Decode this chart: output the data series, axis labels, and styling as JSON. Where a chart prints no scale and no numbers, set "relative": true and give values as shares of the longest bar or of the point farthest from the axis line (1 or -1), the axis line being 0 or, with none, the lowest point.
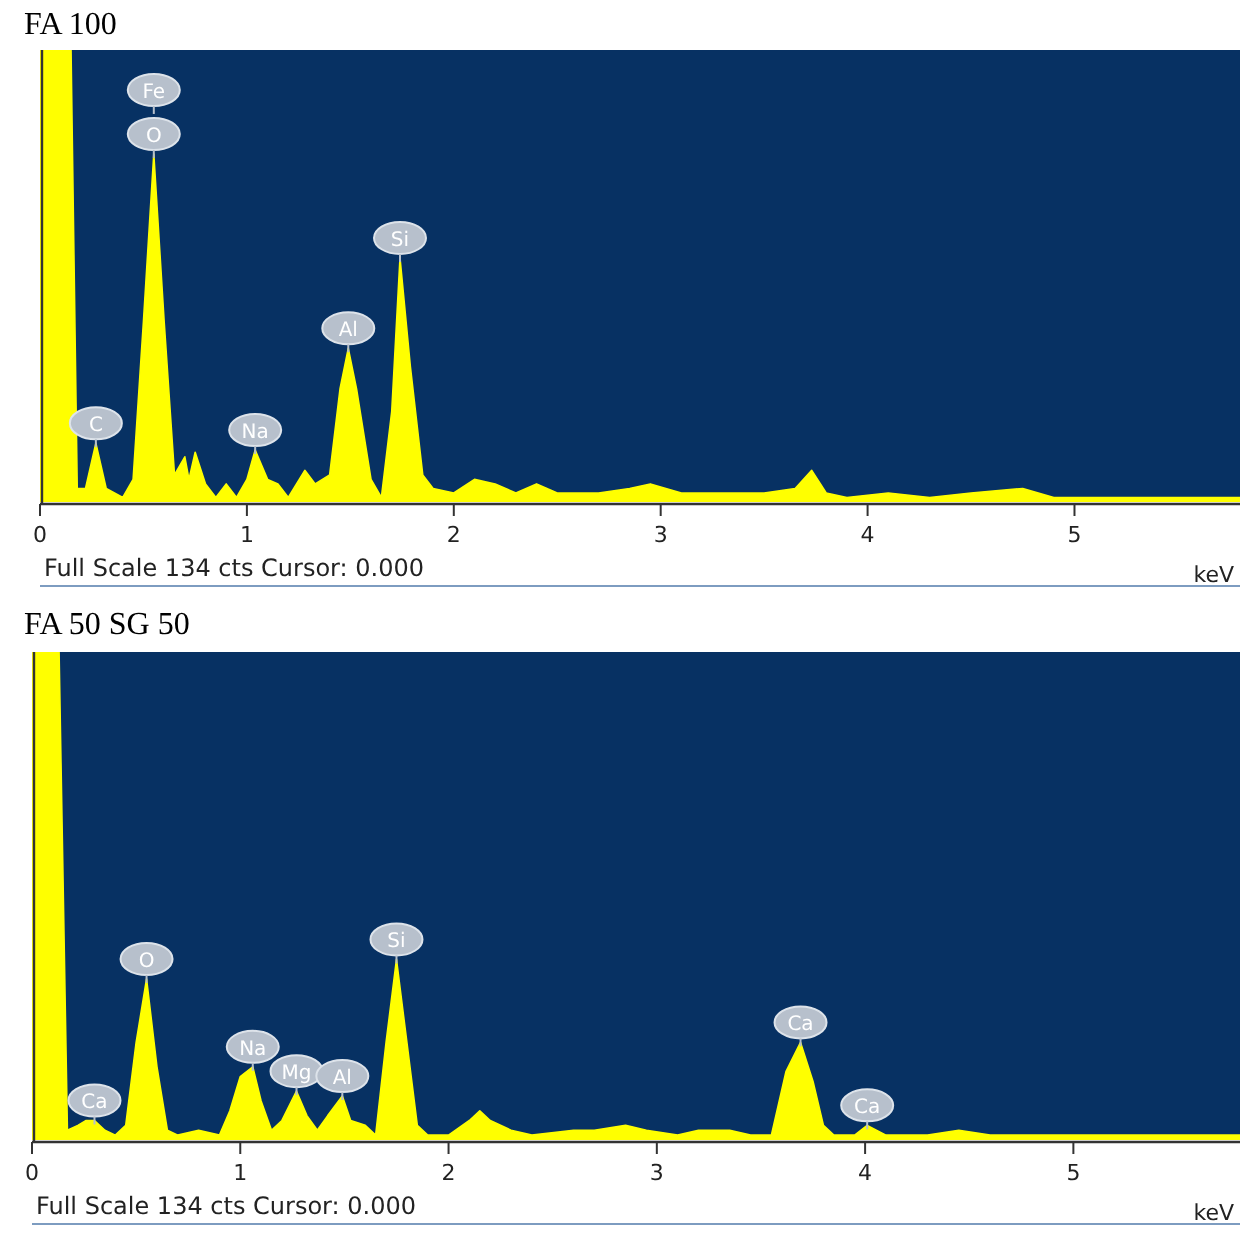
{
  "chart_data": [
    {
      "type": "area",
      "title": "FA 100",
      "xlabel": "keV",
      "relative": true,
      "xlim": [
        0,
        5.8
      ],
      "xticks": [
        0,
        1,
        2,
        3,
        4,
        5
      ],
      "grid": false,
      "series": [
        {
          "color": "#ffff00",
          "x": [
            0,
            0.05,
            0.15,
            0.18,
            0.22,
            0.27,
            0.32,
            0.4,
            0.45,
            0.5,
            0.55,
            0.6,
            0.65,
            0.7,
            0.72,
            0.75,
            0.8,
            0.85,
            0.9,
            0.95,
            1.0,
            1.04,
            1.1,
            1.15,
            1.2,
            1.28,
            1.33,
            1.4,
            1.45,
            1.49,
            1.53,
            1.6,
            1.65,
            1.7,
            1.74,
            1.79,
            1.85,
            1.9,
            2.0,
            2.1,
            2.2,
            2.3,
            2.4,
            2.5,
            2.7,
            2.85,
            2.95,
            3.1,
            3.3,
            3.5,
            3.65,
            3.73,
            3.8,
            3.9,
            4.1,
            4.3,
            4.5,
            4.75,
            4.9,
            5.2,
            5.5,
            5.8
          ],
          "values": [
            1,
            1,
            1,
            0.03,
            0.03,
            0.13,
            0.03,
            0.01,
            0.05,
            0.4,
            0.77,
            0.4,
            0.06,
            0.1,
            0.05,
            0.11,
            0.04,
            0.01,
            0.04,
            0.01,
            0.05,
            0.115,
            0.05,
            0.04,
            0.01,
            0.07,
            0.04,
            0.06,
            0.25,
            0.34,
            0.25,
            0.05,
            0.01,
            0.2,
            0.54,
            0.3,
            0.06,
            0.03,
            0.02,
            0.05,
            0.04,
            0.02,
            0.04,
            0.02,
            0.02,
            0.03,
            0.04,
            0.02,
            0.02,
            0.02,
            0.03,
            0.07,
            0.02,
            0.01,
            0.02,
            0.01,
            0.02,
            0.03,
            0.01,
            0.01,
            0.01,
            0.01
          ]
        }
      ],
      "annotations": [
        {
          "text": "C",
          "x": 0.27,
          "y": 0.13
        },
        {
          "text": "O",
          "x": 0.55,
          "y": 0.77
        },
        {
          "text": "Fe",
          "x": 0.55,
          "y": 0.77
        },
        {
          "text": "Na",
          "x": 1.04,
          "y": 0.115
        },
        {
          "text": "Al",
          "x": 1.49,
          "y": 0.34
        },
        {
          "text": "Si",
          "x": 1.74,
          "y": 0.54
        },
        "Full Scale 134 cts Cursor: 0.000"
      ]
    },
    {
      "type": "area",
      "title": "FA 50 SG 50",
      "xlabel": "keV",
      "relative": true,
      "xlim": [
        0,
        5.8
      ],
      "xticks": [
        0,
        1,
        2,
        3,
        4,
        5
      ],
      "grid": false,
      "series": [
        {
          "color": "#ffff00",
          "x": [
            0,
            0.05,
            0.13,
            0.17,
            0.22,
            0.26,
            0.3,
            0.35,
            0.4,
            0.45,
            0.5,
            0.55,
            0.6,
            0.65,
            0.7,
            0.8,
            0.9,
            0.95,
            1.0,
            1.06,
            1.1,
            1.15,
            1.2,
            1.27,
            1.32,
            1.37,
            1.42,
            1.49,
            1.53,
            1.6,
            1.65,
            1.7,
            1.75,
            1.8,
            1.85,
            1.9,
            2.0,
            2.1,
            2.15,
            2.2,
            2.3,
            2.4,
            2.6,
            2.7,
            2.85,
            2.95,
            3.1,
            3.2,
            3.35,
            3.45,
            3.55,
            3.62,
            3.69,
            3.75,
            3.8,
            3.85,
            3.95,
            4.01,
            4.1,
            4.3,
            4.45,
            4.6,
            5.0,
            5.4,
            5.8
          ],
          "values": [
            1,
            1,
            1,
            0.02,
            0.03,
            0.04,
            0.04,
            0.02,
            0.01,
            0.03,
            0.2,
            0.33,
            0.15,
            0.02,
            0.01,
            0.02,
            0.01,
            0.06,
            0.13,
            0.15,
            0.08,
            0.02,
            0.04,
            0.1,
            0.05,
            0.02,
            0.05,
            0.09,
            0.04,
            0.03,
            0.01,
            0.2,
            0.37,
            0.2,
            0.03,
            0.01,
            0.01,
            0.04,
            0.06,
            0.04,
            0.02,
            0.01,
            0.02,
            0.02,
            0.03,
            0.02,
            0.01,
            0.02,
            0.02,
            0.01,
            0.01,
            0.14,
            0.2,
            0.12,
            0.03,
            0.01,
            0.01,
            0.03,
            0.01,
            0.01,
            0.02,
            0.01,
            0.01,
            0.01,
            0.01
          ]
        }
      ],
      "annotations": [
        {
          "text": "Ca",
          "x": 0.3,
          "y": 0.04
        },
        {
          "text": "O",
          "x": 0.55,
          "y": 0.33
        },
        {
          "text": "Na",
          "x": 1.06,
          "y": 0.15
        },
        {
          "text": "Mg",
          "x": 1.27,
          "y": 0.1
        },
        {
          "text": "Al",
          "x": 1.49,
          "y": 0.09
        },
        {
          "text": "Si",
          "x": 1.75,
          "y": 0.37
        },
        {
          "text": "Ca",
          "x": 3.69,
          "y": 0.2
        },
        {
          "text": "Ca",
          "x": 4.01,
          "y": 0.03
        },
        "Full Scale 134 cts Cursor: 0.000"
      ]
    }
  ]
}
